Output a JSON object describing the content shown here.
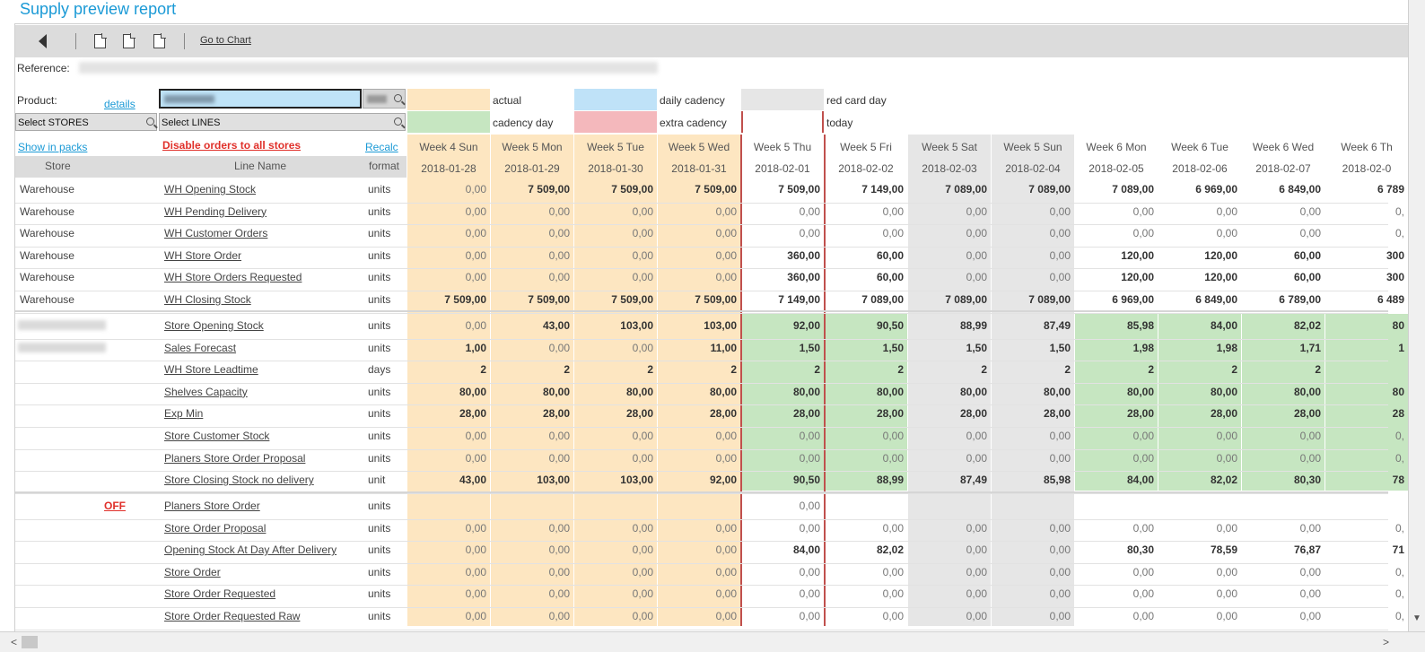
{
  "title": "Supply preview report",
  "toolbar": {
    "back_icon": "back-arrow-icon",
    "goto_chart": "Go to Chart"
  },
  "reference_label": "Reference:",
  "product_label": "Product:",
  "details_label": "details",
  "select_stores": "Select STORES",
  "select_lines": "Select LINES",
  "legend": {
    "actual": "actual",
    "daily_cadency": "daily cadency",
    "red_card_day": "red card day",
    "cadency_day": "cadency day",
    "extra_cadency": "extra cadency",
    "today": "today",
    "colors": {
      "actual": "#fde6c1",
      "daily_cadency": "#bfe2f8",
      "red_card_day": "#e6e6e6",
      "cadency_day": "#c6e6c1",
      "extra_cadency": "#f4b8bc",
      "today": "#ffffff"
    }
  },
  "links": {
    "show_in_packs": "Show in packs",
    "disable_orders": "Disable orders to all stores",
    "recalc": "Recalc",
    "off": "OFF"
  },
  "headers": {
    "store": "Store",
    "line_name": "Line Name",
    "format": "format"
  },
  "columns": [
    {
      "day": "Week 4 Sun",
      "date": "2018-01-28",
      "type": "actual"
    },
    {
      "day": "Week 5 Mon",
      "date": "2018-01-29",
      "type": "actual"
    },
    {
      "day": "Week 5 Tue",
      "date": "2018-01-30",
      "type": "actual"
    },
    {
      "day": "Week 5 Wed",
      "date": "2018-01-31",
      "type": "actual"
    },
    {
      "day": "Week 5 Thu",
      "date": "2018-02-01",
      "type": "today"
    },
    {
      "day": "Week 5 Fri",
      "date": "2018-02-02",
      "type": "normal"
    },
    {
      "day": "Week 5 Sat",
      "date": "2018-02-03",
      "type": "red"
    },
    {
      "day": "Week 5 Sun",
      "date": "2018-02-04",
      "type": "red"
    },
    {
      "day": "Week 6 Mon",
      "date": "2018-02-05",
      "type": "normal"
    },
    {
      "day": "Week 6 Tue",
      "date": "2018-02-06",
      "type": "normal"
    },
    {
      "day": "Week 6 Wed",
      "date": "2018-02-07",
      "type": "normal"
    },
    {
      "day": "Week 6 Th",
      "date": "2018-02-0",
      "type": "normal"
    }
  ],
  "warehouse_rows": [
    {
      "store": "Warehouse",
      "line": "WH Opening Stock",
      "format": "units",
      "values": [
        "0,00",
        "7 509,00",
        "7 509,00",
        "7 509,00",
        "7 509,00",
        "7 149,00",
        "7 089,00",
        "7 089,00",
        "7 089,00",
        "6 969,00",
        "6 849,00",
        "6 789"
      ],
      "bold": [
        false,
        true,
        true,
        true,
        true,
        true,
        true,
        true,
        true,
        true,
        true,
        true
      ]
    },
    {
      "store": "Warehouse",
      "line": "WH Pending Delivery",
      "format": "units",
      "values": [
        "0,00",
        "0,00",
        "0,00",
        "0,00",
        "0,00",
        "0,00",
        "0,00",
        "0,00",
        "0,00",
        "0,00",
        "0,00",
        "0,"
      ],
      "bold": []
    },
    {
      "store": "Warehouse",
      "line": "WH Customer Orders",
      "format": "units",
      "values": [
        "0,00",
        "0,00",
        "0,00",
        "0,00",
        "0,00",
        "0,00",
        "0,00",
        "0,00",
        "0,00",
        "0,00",
        "0,00",
        "0,"
      ],
      "bold": []
    },
    {
      "store": "Warehouse",
      "line": "WH Store Order",
      "format": "units",
      "values": [
        "0,00",
        "0,00",
        "0,00",
        "0,00",
        "360,00",
        "60,00",
        "0,00",
        "0,00",
        "120,00",
        "120,00",
        "60,00",
        "300"
      ],
      "bold": [
        false,
        false,
        false,
        false,
        true,
        true,
        false,
        false,
        true,
        true,
        true,
        true
      ]
    },
    {
      "store": "Warehouse",
      "line": "WH Store Orders Requested",
      "format": "units",
      "values": [
        "0,00",
        "0,00",
        "0,00",
        "0,00",
        "360,00",
        "60,00",
        "0,00",
        "0,00",
        "120,00",
        "120,00",
        "60,00",
        "300"
      ],
      "bold": [
        false,
        false,
        false,
        false,
        true,
        true,
        false,
        false,
        true,
        true,
        true,
        true
      ]
    },
    {
      "store": "Warehouse",
      "line": "WH Closing Stock",
      "format": "units",
      "values": [
        "7 509,00",
        "7 509,00",
        "7 509,00",
        "7 509,00",
        "7 149,00",
        "7 089,00",
        "7 089,00",
        "7 089,00",
        "6 969,00",
        "6 849,00",
        "6 789,00",
        "6 489"
      ],
      "bold": [
        true,
        true,
        true,
        true,
        true,
        true,
        true,
        true,
        true,
        true,
        true,
        true
      ]
    }
  ],
  "store_rows": [
    {
      "line": "Store Opening Stock",
      "format": "units",
      "values": [
        "0,00",
        "43,00",
        "103,00",
        "103,00",
        "92,00",
        "90,50",
        "88,99",
        "87,49",
        "85,98",
        "84,00",
        "82,02",
        "80"
      ],
      "bold": [
        false,
        true,
        true,
        true,
        true,
        true,
        true,
        true,
        true,
        true,
        true,
        true
      ]
    },
    {
      "line": "Sales Forecast",
      "format": "units",
      "values": [
        "1,00",
        "0,00",
        "0,00",
        "11,00",
        "1,50",
        "1,50",
        "1,50",
        "1,50",
        "1,98",
        "1,98",
        "1,71",
        "1"
      ],
      "bold": [
        true,
        false,
        false,
        true,
        true,
        true,
        true,
        true,
        true,
        true,
        true,
        true
      ]
    },
    {
      "line": "WH Store Leadtime",
      "format": "days",
      "values": [
        "2",
        "2",
        "2",
        "2",
        "2",
        "2",
        "2",
        "2",
        "2",
        "2",
        "2",
        ""
      ],
      "bold": [
        true,
        true,
        true,
        true,
        true,
        true,
        true,
        true,
        true,
        true,
        true,
        true
      ]
    },
    {
      "line": "Shelves Capacity",
      "format": "units",
      "values": [
        "80,00",
        "80,00",
        "80,00",
        "80,00",
        "80,00",
        "80,00",
        "80,00",
        "80,00",
        "80,00",
        "80,00",
        "80,00",
        "80"
      ],
      "bold": [
        true,
        true,
        true,
        true,
        true,
        true,
        true,
        true,
        true,
        true,
        true,
        true
      ]
    },
    {
      "line": "Exp Min",
      "format": "units",
      "values": [
        "28,00",
        "28,00",
        "28,00",
        "28,00",
        "28,00",
        "28,00",
        "28,00",
        "28,00",
        "28,00",
        "28,00",
        "28,00",
        "28"
      ],
      "bold": [
        true,
        true,
        true,
        true,
        true,
        true,
        true,
        true,
        true,
        true,
        true,
        true
      ]
    },
    {
      "line": "Store Customer Stock",
      "format": "units",
      "values": [
        "0,00",
        "0,00",
        "0,00",
        "0,00",
        "0,00",
        "0,00",
        "0,00",
        "0,00",
        "0,00",
        "0,00",
        "0,00",
        "0,"
      ],
      "bold": []
    },
    {
      "line": "Planers Store Order Proposal",
      "format": "units",
      "values": [
        "0,00",
        "0,00",
        "0,00",
        "0,00",
        "0,00",
        "0,00",
        "0,00",
        "0,00",
        "0,00",
        "0,00",
        "0,00",
        "0,"
      ],
      "bold": []
    },
    {
      "line": "Store Closing Stock no delivery",
      "format": "unit",
      "values": [
        "43,00",
        "103,00",
        "103,00",
        "92,00",
        "90,50",
        "88,99",
        "87,49",
        "85,98",
        "84,00",
        "82,02",
        "80,30",
        "78"
      ],
      "bold": [
        true,
        true,
        true,
        true,
        true,
        true,
        true,
        true,
        true,
        true,
        true,
        true
      ]
    }
  ],
  "order_rows": [
    {
      "line": "Planers Store Order",
      "format": "units",
      "values": [
        "",
        "",
        "",
        "",
        "0,00",
        "",
        "",
        "",
        "",
        "",
        "",
        ""
      ],
      "bold": []
    },
    {
      "line": "Store Order Proposal",
      "format": "units",
      "values": [
        "0,00",
        "0,00",
        "0,00",
        "0,00",
        "0,00",
        "0,00",
        "0,00",
        "0,00",
        "0,00",
        "0,00",
        "0,00",
        "0,"
      ],
      "bold": []
    },
    {
      "line": "Opening Stock At Day After Delivery",
      "format": "units",
      "values": [
        "0,00",
        "0,00",
        "0,00",
        "0,00",
        "84,00",
        "82,02",
        "0,00",
        "0,00",
        "80,30",
        "78,59",
        "76,87",
        "71"
      ],
      "bold": [
        false,
        false,
        false,
        false,
        true,
        true,
        false,
        false,
        true,
        true,
        true,
        true
      ]
    },
    {
      "line": "Store Order",
      "format": "units",
      "values": [
        "0,00",
        "0,00",
        "0,00",
        "0,00",
        "0,00",
        "0,00",
        "0,00",
        "0,00",
        "0,00",
        "0,00",
        "0,00",
        "0,"
      ],
      "bold": []
    },
    {
      "line": "Store Order Requested",
      "format": "units",
      "values": [
        "0,00",
        "0,00",
        "0,00",
        "0,00",
        "0,00",
        "0,00",
        "0,00",
        "0,00",
        "0,00",
        "0,00",
        "0,00",
        "0,"
      ],
      "bold": []
    },
    {
      "line": "Store Order Requested Raw",
      "format": "units",
      "values": [
        "0,00",
        "0,00",
        "0,00",
        "0,00",
        "0,00",
        "0,00",
        "0,00",
        "0,00",
        "0,00",
        "0,00",
        "0,00",
        "0,"
      ],
      "bold": []
    }
  ]
}
